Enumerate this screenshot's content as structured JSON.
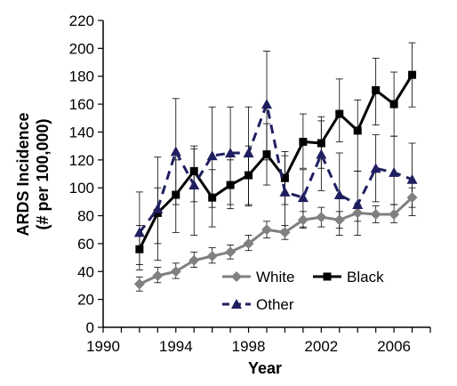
{
  "chart_data": {
    "type": "line",
    "title": "",
    "xlabel": "Year",
    "ylabel_line1": "ARDS Incidence",
    "ylabel_line2": "(# per 100,000)",
    "xlim": [
      1990,
      2008
    ],
    "ylim": [
      0,
      220
    ],
    "xticks": [
      1990,
      1994,
      1998,
      2002,
      2006
    ],
    "yticks": [
      0,
      20,
      40,
      60,
      80,
      100,
      120,
      140,
      160,
      180,
      200,
      220
    ],
    "legend_placement": "bottom-right",
    "series": [
      {
        "name": "White",
        "color": "#808080",
        "marker": "diamond",
        "dash": "solid",
        "x": [
          1992,
          1993,
          1994,
          1995,
          1996,
          1997,
          1998,
          1999,
          2000,
          2001,
          2002,
          2003,
          2004,
          2005,
          2006,
          2007
        ],
        "y": [
          31,
          37,
          40,
          48,
          51,
          54,
          60,
          70,
          68,
          77,
          79,
          77,
          82,
          81,
          81,
          93
        ],
        "err_low": [
          26,
          32,
          35,
          43,
          46,
          49,
          55,
          64,
          63,
          71,
          72,
          71,
          76,
          75,
          75,
          86
        ],
        "err_high": [
          36,
          43,
          46,
          54,
          57,
          59,
          66,
          76,
          73,
          83,
          86,
          83,
          88,
          87,
          88,
          100
        ]
      },
      {
        "name": "Black",
        "color": "#000000",
        "marker": "square",
        "dash": "solid",
        "x": [
          1992,
          1993,
          1994,
          1995,
          1996,
          1997,
          1998,
          1999,
          2000,
          2001,
          2002,
          2003,
          2004,
          2005,
          2006,
          2007
        ],
        "y": [
          56,
          82,
          95,
          112,
          93,
          102,
          109,
          124,
          107,
          133,
          132,
          153,
          141,
          170,
          160,
          181
        ],
        "err_low": [
          41,
          60,
          68,
          90,
          72,
          85,
          87,
          102,
          88,
          114,
          114,
          133,
          112,
          145,
          137,
          158
        ],
        "err_high": [
          73,
          100,
          120,
          130,
          113,
          120,
          130,
          146,
          126,
          153,
          151,
          178,
          163,
          193,
          183,
          204
        ]
      },
      {
        "name": "Other",
        "color": "#1f1f60",
        "marker": "triangle",
        "dash": "dashed",
        "x": [
          1992,
          1993,
          1994,
          1995,
          1996,
          1997,
          1998,
          1999,
          2000,
          2001,
          2002,
          2003,
          2004,
          2005,
          2006,
          2007
        ],
        "y": [
          68,
          85,
          126,
          102,
          123,
          125,
          125,
          160,
          97,
          93,
          124,
          95,
          88,
          114,
          111,
          106
        ],
        "err_low": [
          45,
          48,
          88,
          66,
          86,
          88,
          88,
          120,
          70,
          72,
          98,
          66,
          66,
          90,
          88,
          80
        ],
        "err_high": [
          97,
          122,
          164,
          128,
          158,
          158,
          158,
          198,
          123,
          113,
          148,
          125,
          112,
          138,
          137,
          132
        ]
      }
    ]
  }
}
